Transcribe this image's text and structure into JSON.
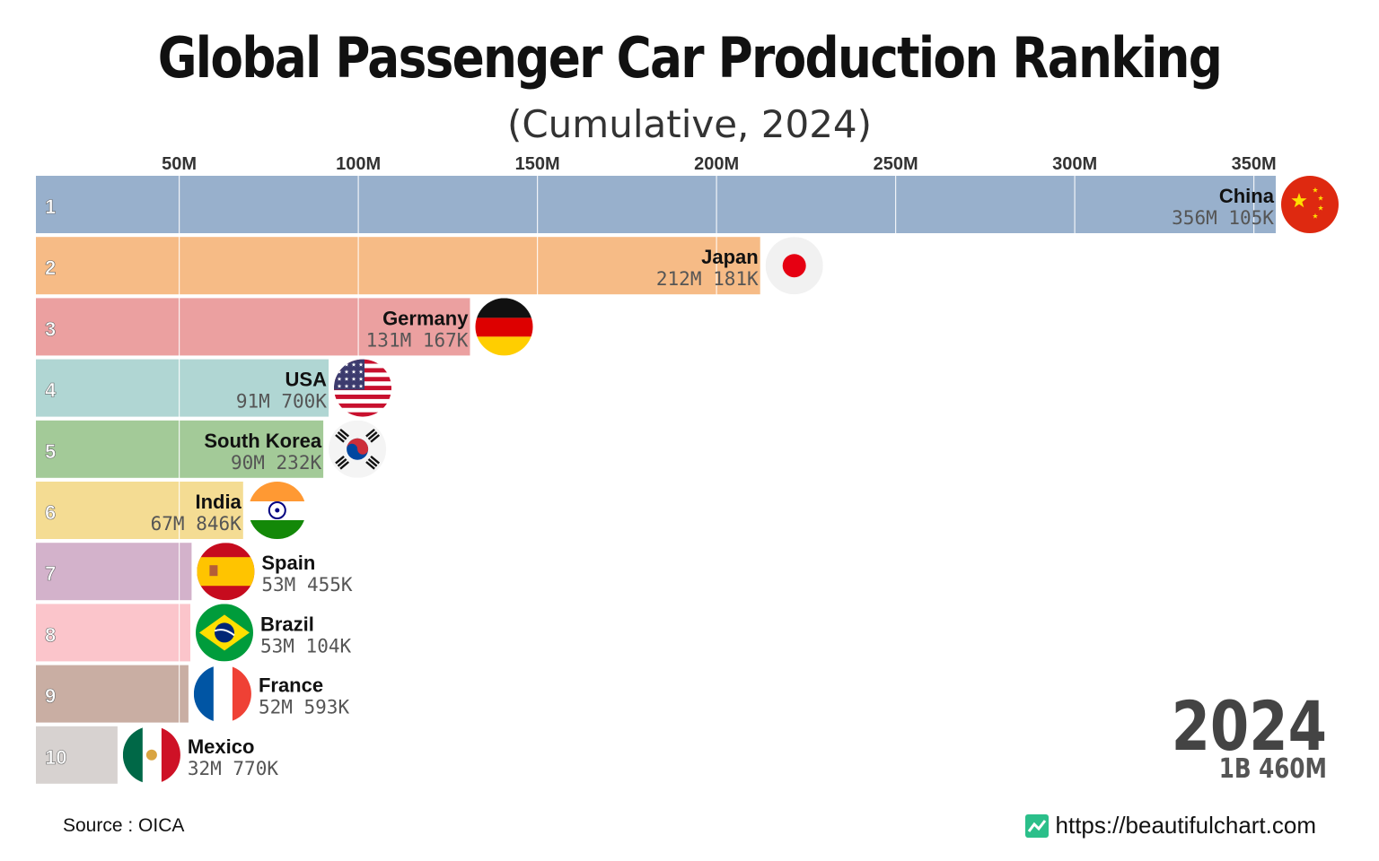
{
  "title": "Global Passenger Car Production Ranking",
  "subtitle": "(Cumulative, 2024)",
  "source": "Source : OICA",
  "website": "https://beautifulchart.com",
  "colors": {
    "grid": "#ffffff",
    "tick": "#333333",
    "year": "#444444",
    "label": "#111111",
    "value": "#555555"
  },
  "chart_data": {
    "type": "bar",
    "orientation": "horizontal",
    "title": "Global Passenger Car Production Ranking",
    "subtitle": "(Cumulative, 2024)",
    "xlim": [
      10000000,
      360000000
    ],
    "ticks": [
      {
        "value": 50000000,
        "label": "50M"
      },
      {
        "value": 100000000,
        "label": "100M"
      },
      {
        "value": 150000000,
        "label": "150M"
      },
      {
        "value": 200000000,
        "label": "200M"
      },
      {
        "value": 250000000,
        "label": "250M"
      },
      {
        "value": 300000000,
        "label": "300M"
      },
      {
        "value": 350000000,
        "label": "350M"
      }
    ],
    "year": "2024",
    "total": "1B 460M",
    "bars": [
      {
        "rank": "1",
        "country": "China",
        "value": 356105000,
        "value_label": "356M 105K",
        "color": "#98b0cc",
        "flag": "china-flag-icon"
      },
      {
        "rank": "2",
        "country": "Japan",
        "value": 212181000,
        "value_label": "212M 181K",
        "color": "#f6bb86",
        "flag": "japan-flag-icon"
      },
      {
        "rank": "3",
        "country": "Germany",
        "value": 131167000,
        "value_label": "131M 167K",
        "color": "#eba0a0",
        "flag": "germany-flag-icon"
      },
      {
        "rank": "4",
        "country": "USA",
        "value": 91700000,
        "value_label": "91M 700K",
        "color": "#b0d6d3",
        "flag": "usa-flag-icon"
      },
      {
        "rank": "5",
        "country": "South Korea",
        "value": 90232000,
        "value_label": "90M 232K",
        "color": "#a3ca98",
        "flag": "south-korea-flag-icon"
      },
      {
        "rank": "6",
        "country": "India",
        "value": 67846000,
        "value_label": "67M 846K",
        "color": "#f4dc93",
        "flag": "india-flag-icon"
      },
      {
        "rank": "7",
        "country": "Spain",
        "value": 53455000,
        "value_label": "53M 455K",
        "color": "#d3b2cb",
        "flag": "spain-flag-icon"
      },
      {
        "rank": "8",
        "country": "Brazil",
        "value": 53104000,
        "value_label": "53M 104K",
        "color": "#fbc5cb",
        "flag": "brazil-flag-icon"
      },
      {
        "rank": "9",
        "country": "France",
        "value": 52593000,
        "value_label": "52M 593K",
        "color": "#c9aea3",
        "flag": "france-flag-icon"
      },
      {
        "rank": "10",
        "country": "Mexico",
        "value": 32770000,
        "value_label": "32M 770K",
        "color": "#d7d2d0",
        "flag": "mexico-flag-icon"
      }
    ]
  }
}
